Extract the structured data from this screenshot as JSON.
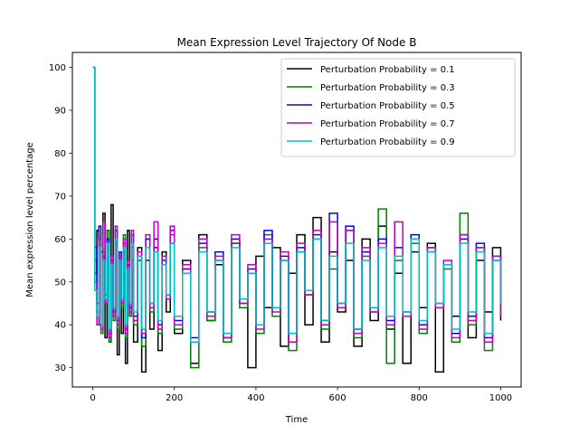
{
  "chart_data": {
    "type": "line",
    "title": "Mean Expression Level Trajectory Of Node B",
    "xlabel": "Time",
    "ylabel": "Mean expression level percentage",
    "xlim": [
      -50,
      1050
    ],
    "ylim": [
      25.5,
      103.5
    ],
    "xticks": [
      0,
      200,
      400,
      600,
      800,
      1000
    ],
    "yticks": [
      30,
      40,
      50,
      60,
      70,
      80,
      90,
      100
    ],
    "grid": false,
    "legend_position": "top-right",
    "series": [
      {
        "name": "Perturbation Probability = 0.1",
        "color": "#000000",
        "x": [
          0,
          5,
          10,
          15,
          20,
          25,
          30,
          35,
          40,
          45,
          50,
          55,
          60,
          65,
          70,
          75,
          80,
          85,
          90,
          95,
          100,
          110,
          120,
          130,
          140,
          150,
          160,
          170,
          180,
          190,
          200,
          220,
          240,
          260,
          280,
          300,
          320,
          340,
          360,
          380,
          400,
          420,
          440,
          460,
          480,
          500,
          520,
          540,
          560,
          580,
          600,
          620,
          640,
          660,
          680,
          700,
          720,
          740,
          760,
          780,
          800,
          820,
          840,
          860,
          880,
          900,
          920,
          940,
          960,
          980,
          1000
        ],
        "y": [
          100,
          52,
          62,
          40,
          57,
          66,
          37,
          62,
          36,
          68,
          42,
          60,
          33,
          56,
          38,
          57,
          31,
          62,
          42,
          55,
          36,
          58,
          29,
          55,
          39,
          60,
          34,
          57,
          43,
          59,
          38,
          55,
          31,
          61,
          41,
          54,
          37,
          59,
          45,
          30,
          56,
          44,
          58,
          35,
          52,
          61,
          40,
          65,
          36,
          57,
          43,
          55,
          35,
          60,
          41,
          63,
          39,
          52,
          31,
          57,
          44,
          59,
          29,
          54,
          42,
          61,
          37,
          55,
          43,
          58,
          41
        ]
      },
      {
        "name": "Perturbation Probability = 0.3",
        "color": "#008000",
        "x": [
          0,
          5,
          10,
          15,
          20,
          25,
          30,
          35,
          40,
          45,
          50,
          55,
          60,
          65,
          70,
          75,
          80,
          85,
          90,
          95,
          100,
          110,
          120,
          130,
          140,
          150,
          160,
          170,
          180,
          190,
          200,
          220,
          240,
          260,
          280,
          300,
          320,
          340,
          360,
          380,
          400,
          420,
          440,
          460,
          480,
          500,
          520,
          540,
          560,
          580,
          600,
          620,
          640,
          660,
          680,
          700,
          720,
          740,
          760,
          780,
          800,
          820,
          840,
          860,
          880,
          900,
          920,
          940,
          960,
          980,
          1000
        ],
        "y": [
          100,
          55,
          43,
          60,
          38,
          57,
          45,
          62,
          36,
          54,
          41,
          59,
          39,
          56,
          44,
          61,
          37,
          53,
          42,
          58,
          40,
          55,
          35,
          60,
          43,
          57,
          38,
          54,
          46,
          61,
          39,
          52,
          30,
          58,
          41,
          55,
          36,
          59,
          44,
          52,
          38,
          61,
          42,
          55,
          34,
          57,
          47,
          60,
          39,
          53,
          44,
          62,
          37,
          56,
          43,
          67,
          31,
          55,
          42,
          59,
          38,
          57,
          44,
          53,
          36,
          66,
          40,
          58,
          34,
          55,
          44
        ]
      },
      {
        "name": "Perturbation Probability = 0.5",
        "color": "#0000ff",
        "x": [
          0,
          5,
          10,
          15,
          20,
          25,
          30,
          35,
          40,
          45,
          50,
          55,
          60,
          65,
          70,
          75,
          80,
          85,
          90,
          95,
          100,
          110,
          120,
          130,
          140,
          150,
          160,
          170,
          180,
          190,
          200,
          220,
          240,
          260,
          280,
          300,
          320,
          340,
          360,
          380,
          400,
          420,
          440,
          460,
          480,
          500,
          520,
          540,
          560,
          580,
          600,
          620,
          640,
          660,
          680,
          700,
          720,
          740,
          760,
          780,
          800,
          820,
          840,
          860,
          880,
          900,
          920,
          940,
          960,
          980,
          1000
        ],
        "y": [
          100,
          58,
          45,
          63,
          40,
          56,
          47,
          60,
          38,
          55,
          43,
          62,
          41,
          57,
          46,
          59,
          39,
          54,
          44,
          61,
          42,
          56,
          37,
          60,
          45,
          58,
          40,
          55,
          47,
          62,
          41,
          53,
          37,
          59,
          43,
          57,
          38,
          60,
          46,
          53,
          40,
          62,
          44,
          56,
          38,
          58,
          48,
          61,
          41,
          66,
          45,
          63,
          39,
          57,
          44,
          60,
          41,
          58,
          43,
          61,
          40,
          58,
          45,
          54,
          38,
          60,
          42,
          59,
          37,
          56,
          45
        ]
      },
      {
        "name": "Perturbation Probability = 0.7",
        "color": "#bf00bf",
        "x": [
          0,
          5,
          10,
          15,
          20,
          25,
          30,
          35,
          40,
          45,
          50,
          55,
          60,
          65,
          70,
          75,
          80,
          85,
          90,
          95,
          100,
          110,
          120,
          130,
          140,
          150,
          160,
          170,
          180,
          190,
          200,
          220,
          240,
          260,
          280,
          300,
          320,
          340,
          360,
          380,
          400,
          420,
          440,
          460,
          480,
          500,
          520,
          540,
          560,
          580,
          600,
          620,
          640,
          660,
          680,
          700,
          720,
          740,
          760,
          780,
          800,
          820,
          840,
          860,
          880,
          900,
          920,
          940,
          960,
          980,
          1000
        ],
        "y": [
          100,
          50,
          40,
          60,
          39,
          64,
          45,
          58,
          37,
          56,
          42,
          63,
          40,
          56,
          45,
          60,
          38,
          55,
          43,
          62,
          41,
          57,
          38,
          61,
          44,
          64,
          39,
          56,
          46,
          63,
          40,
          54,
          36,
          60,
          42,
          56,
          37,
          61,
          45,
          54,
          39,
          60,
          43,
          57,
          36,
          59,
          47,
          62,
          40,
          64,
          44,
          62,
          38,
          58,
          43,
          59,
          40,
          64,
          42,
          60,
          39,
          58,
          44,
          55,
          37,
          61,
          41,
          58,
          36,
          56,
          42
        ]
      },
      {
        "name": "Perturbation Probability = 0.9",
        "color": "#00bfbf",
        "x": [
          0,
          5,
          10,
          15,
          20,
          25,
          30,
          35,
          40,
          45,
          50,
          55,
          60,
          65,
          70,
          75,
          80,
          85,
          90,
          95,
          100,
          110,
          120,
          130,
          140,
          150,
          160,
          170,
          180,
          190,
          200,
          220,
          240,
          260,
          280,
          300,
          320,
          340,
          360,
          380,
          400,
          420,
          440,
          460,
          480,
          500,
          520,
          540,
          560,
          580,
          600,
          620,
          640,
          660,
          680,
          700,
          720,
          740,
          760,
          780,
          800,
          820,
          840,
          860,
          880,
          900,
          920,
          940,
          960,
          980,
          1000
        ],
        "y": [
          100,
          48,
          42,
          58,
          40,
          55,
          46,
          59,
          39,
          54,
          44,
          60,
          42,
          55,
          46,
          58,
          40,
          53,
          45,
          59,
          43,
          56,
          39,
          58,
          45,
          57,
          41,
          54,
          47,
          59,
          42,
          52,
          36,
          57,
          43,
          55,
          38,
          58,
          46,
          52,
          40,
          59,
          44,
          55,
          38,
          57,
          48,
          60,
          41,
          56,
          45,
          59,
          39,
          55,
          44,
          58,
          42,
          56,
          43,
          60,
          41,
          57,
          45,
          54,
          39,
          59,
          43,
          57,
          38,
          55,
          45
        ]
      }
    ]
  }
}
